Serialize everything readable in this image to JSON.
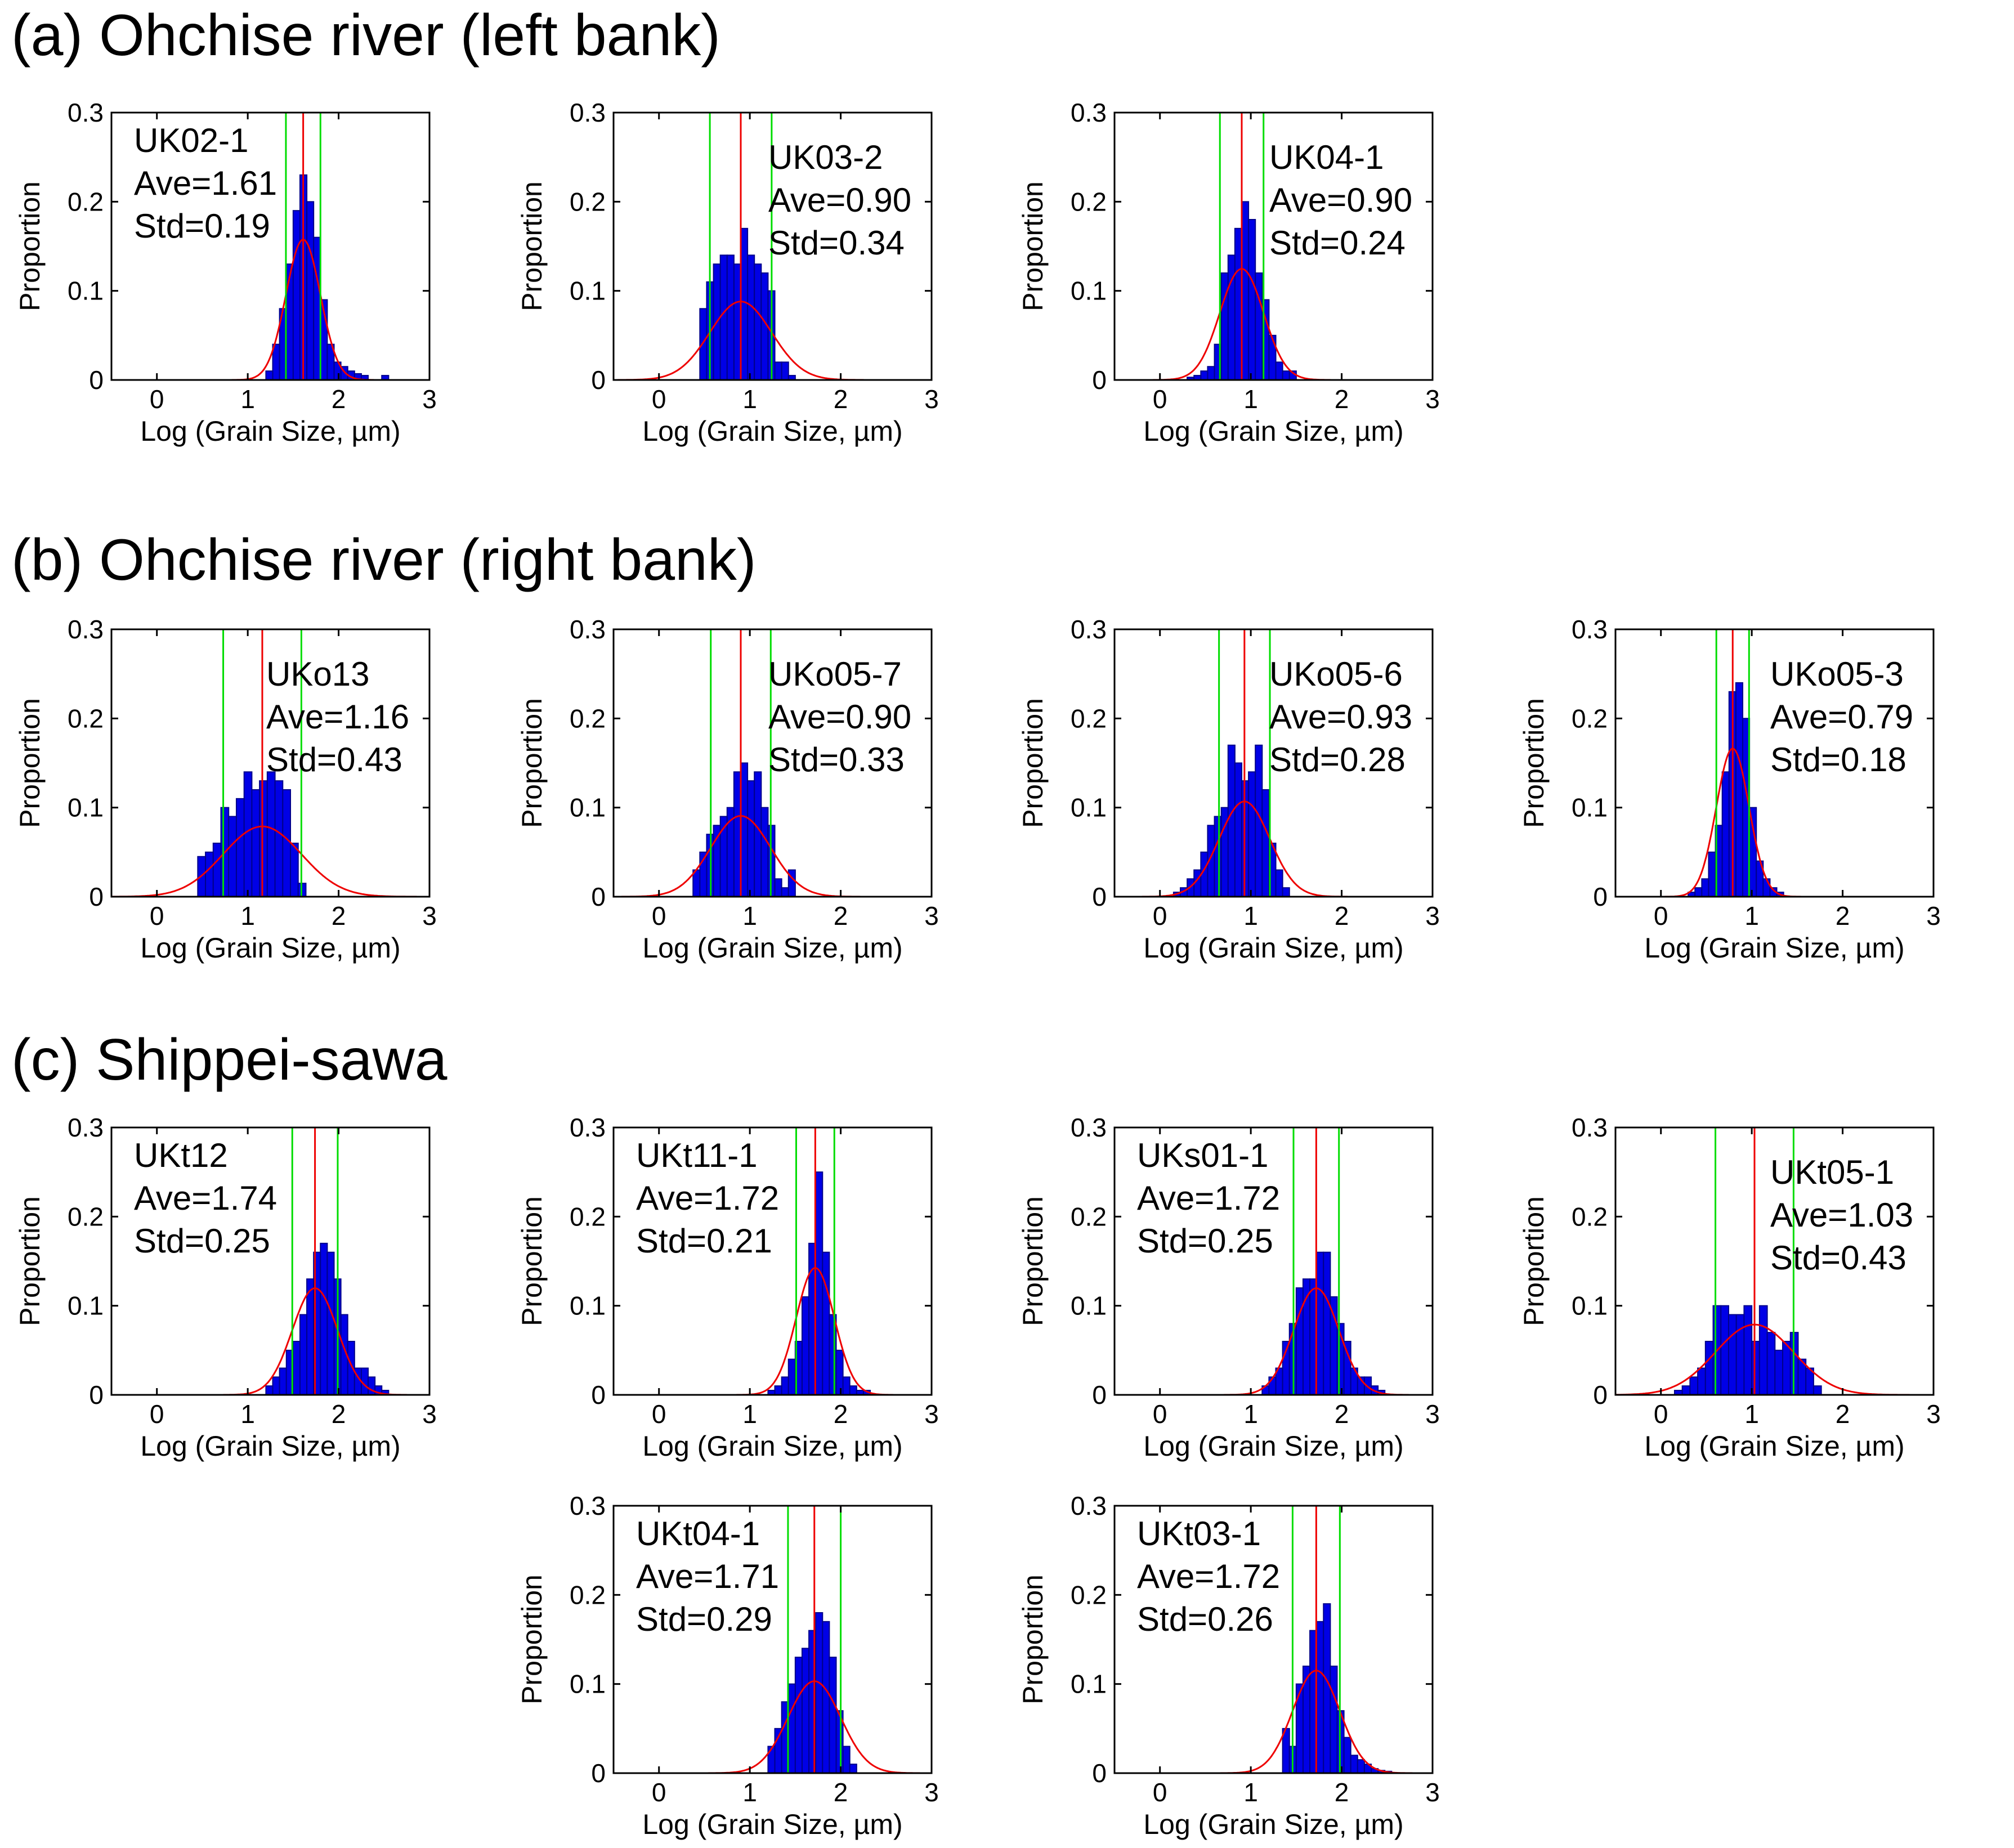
{
  "sections": [
    {
      "id": "a",
      "title": "(a) Ohchise river (left bank)"
    },
    {
      "id": "b",
      "title": "(b) Ohchise river (right bank)"
    },
    {
      "id": "c",
      "title": "(c) Shippei-sawa"
    }
  ],
  "axes": {
    "xlabel": "Log (Grain Size, µm)",
    "ylabel": "Proportion",
    "xlim": [
      -0.5,
      3
    ],
    "ylim": [
      0,
      0.3
    ],
    "xticks": [
      0,
      1,
      2,
      3
    ],
    "xtick_labels": [
      "0",
      "1",
      "2",
      "3"
    ],
    "yticks": [
      0,
      0.1,
      0.2,
      0.3
    ],
    "ytick_labels": [
      "0",
      "0.1",
      "0.2",
      "0.3"
    ]
  },
  "colors": {
    "bars": "#0000e6",
    "bar_edge": "#00008b",
    "mean_line": "#ee0000",
    "std_lines": "#00dd00",
    "fit_curve": "#ee0000"
  },
  "chart_data": [
    {
      "type": "bar",
      "section": "a",
      "sample": "UK02-1",
      "ave_label": "Ave=1.61",
      "std_label": "Std=0.19",
      "ave": 1.61,
      "std": 0.19,
      "bin_width": 0.075,
      "anno_pos": "top-left",
      "bins": [
        1.2,
        1.275,
        1.35,
        1.425,
        1.5,
        1.575,
        1.65,
        1.725,
        1.8,
        1.875,
        1.95,
        2.025,
        2.1,
        2.175,
        2.25,
        2.325,
        2.4,
        2.475
      ],
      "values": [
        0.01,
        0.04,
        0.08,
        0.13,
        0.19,
        0.23,
        0.2,
        0.16,
        0.09,
        0.04,
        0.02,
        0.015,
        0.01,
        0.007,
        0.005,
        0,
        0,
        0.005
      ]
    },
    {
      "type": "bar",
      "section": "a",
      "sample": "UK03-2",
      "ave_label": "Ave=0.90",
      "std_label": "Std=0.34",
      "ave": 0.9,
      "std": 0.34,
      "bin_width": 0.075,
      "anno_pos": "top-right",
      "bins": [
        0.45,
        0.525,
        0.6,
        0.675,
        0.75,
        0.825,
        0.9,
        0.975,
        1.05,
        1.125,
        1.2,
        1.275,
        1.35,
        1.425
      ],
      "values": [
        0.08,
        0.11,
        0.13,
        0.14,
        0.14,
        0.13,
        0.17,
        0.14,
        0.13,
        0.12,
        0.1,
        0.02,
        0.02,
        0.005
      ]
    },
    {
      "type": "bar",
      "section": "a",
      "sample": "UK04-1",
      "ave_label": "Ave=0.90",
      "std_label": "Std=0.24",
      "ave": 0.9,
      "std": 0.24,
      "bin_width": 0.075,
      "anno_pos": "top-right",
      "bins": [
        0.3,
        0.375,
        0.45,
        0.525,
        0.6,
        0.675,
        0.75,
        0.825,
        0.9,
        0.975,
        1.05,
        1.125,
        1.2,
        1.275,
        1.35,
        1.425
      ],
      "values": [
        0.003,
        0.005,
        0.01,
        0.015,
        0.04,
        0.12,
        0.14,
        0.17,
        0.2,
        0.18,
        0.12,
        0.09,
        0.05,
        0.02,
        0.01,
        0.01
      ]
    },
    {
      "type": "bar",
      "section": "b",
      "sample": "UKo13",
      "ave_label": "Ave=1.16",
      "std_label": "Std=0.43",
      "ave": 1.16,
      "std": 0.43,
      "bin_width": 0.085,
      "anno_pos": "top-right",
      "bins": [
        0.45,
        0.535,
        0.62,
        0.705,
        0.79,
        0.875,
        0.96,
        1.045,
        1.13,
        1.215,
        1.3,
        1.385,
        1.47,
        1.555
      ],
      "values": [
        0.045,
        0.05,
        0.06,
        0.1,
        0.09,
        0.11,
        0.14,
        0.12,
        0.13,
        0.14,
        0.13,
        0.12,
        0.06,
        0.015
      ]
    },
    {
      "type": "bar",
      "section": "b",
      "sample": "UKo05-7",
      "ave_label": "Ave=0.90",
      "std_label": "Std=0.33",
      "ave": 0.9,
      "std": 0.33,
      "bin_width": 0.075,
      "anno_pos": "top-right",
      "bins": [
        0.375,
        0.45,
        0.525,
        0.6,
        0.675,
        0.75,
        0.825,
        0.9,
        0.975,
        1.05,
        1.125,
        1.2,
        1.275,
        1.35,
        1.425
      ],
      "values": [
        0.03,
        0.05,
        0.07,
        0.08,
        0.09,
        0.1,
        0.14,
        0.15,
        0.13,
        0.14,
        0.1,
        0.08,
        0.02,
        0.01,
        0.03
      ]
    },
    {
      "type": "bar",
      "section": "b",
      "sample": "UKo05-6",
      "ave_label": "Ave=0.93",
      "std_label": "Std=0.28",
      "ave": 0.93,
      "std": 0.28,
      "bin_width": 0.075,
      "anno_pos": "top-right",
      "bins": [
        0.15,
        0.225,
        0.3,
        0.375,
        0.45,
        0.525,
        0.6,
        0.675,
        0.75,
        0.825,
        0.9,
        0.975,
        1.05,
        1.125,
        1.2,
        1.275,
        1.35
      ],
      "values": [
        0.005,
        0.01,
        0.02,
        0.03,
        0.05,
        0.08,
        0.09,
        0.1,
        0.17,
        0.15,
        0.13,
        0.14,
        0.17,
        0.12,
        0.06,
        0.03,
        0.01
      ]
    },
    {
      "type": "bar",
      "section": "b",
      "sample": "UKo05-3",
      "ave_label": "Ave=0.79",
      "std_label": "Std=0.18",
      "ave": 0.79,
      "std": 0.18,
      "bin_width": 0.075,
      "anno_pos": "top-right",
      "bins": [
        0.3,
        0.375,
        0.45,
        0.525,
        0.6,
        0.675,
        0.75,
        0.825,
        0.9,
        0.975,
        1.05,
        1.125,
        1.2,
        1.275
      ],
      "values": [
        0.005,
        0.01,
        0.02,
        0.05,
        0.08,
        0.14,
        0.23,
        0.24,
        0.2,
        0.1,
        0.04,
        0.02,
        0.01,
        0.005
      ]
    },
    {
      "type": "bar",
      "section": "c",
      "sample": "UKt12",
      "ave_label": "Ave=1.74",
      "std_label": "Std=0.25",
      "ave": 1.74,
      "std": 0.25,
      "bin_width": 0.075,
      "anno_pos": "top-left",
      "bins": [
        1.2,
        1.275,
        1.35,
        1.425,
        1.5,
        1.575,
        1.65,
        1.725,
        1.8,
        1.875,
        1.95,
        2.025,
        2.1,
        2.175,
        2.25,
        2.325,
        2.4,
        2.475
      ],
      "values": [
        0.01,
        0.02,
        0.03,
        0.05,
        0.06,
        0.09,
        0.13,
        0.16,
        0.17,
        0.16,
        0.13,
        0.09,
        0.06,
        0.03,
        0.03,
        0.02,
        0.01,
        0.005
      ]
    },
    {
      "type": "bar",
      "section": "c",
      "sample": "UKt11-1",
      "ave_label": "Ave=1.72",
      "std_label": "Std=0.21",
      "ave": 1.72,
      "std": 0.21,
      "bin_width": 0.075,
      "anno_pos": "top-left",
      "bins": [
        1.2,
        1.275,
        1.35,
        1.425,
        1.5,
        1.575,
        1.65,
        1.725,
        1.8,
        1.875,
        1.95,
        2.025,
        2.1,
        2.175,
        2.25
      ],
      "values": [
        0.005,
        0.01,
        0.02,
        0.04,
        0.06,
        0.11,
        0.17,
        0.25,
        0.16,
        0.09,
        0.05,
        0.02,
        0.01,
        0.005,
        0.005
      ]
    },
    {
      "type": "bar",
      "section": "c",
      "sample": "UKs01-1",
      "ave_label": "Ave=1.72",
      "std_label": "Std=0.25",
      "ave": 1.72,
      "std": 0.25,
      "bin_width": 0.075,
      "anno_pos": "top-left",
      "bins": [
        1.125,
        1.2,
        1.275,
        1.35,
        1.425,
        1.5,
        1.575,
        1.65,
        1.725,
        1.8,
        1.875,
        1.95,
        2.025,
        2.1,
        2.175,
        2.25,
        2.325,
        2.4
      ],
      "values": [
        0.01,
        0.02,
        0.03,
        0.06,
        0.08,
        0.12,
        0.13,
        0.13,
        0.16,
        0.16,
        0.11,
        0.08,
        0.06,
        0.03,
        0.02,
        0.02,
        0.01,
        0.005
      ]
    },
    {
      "type": "bar",
      "section": "c",
      "sample": "UKt05-1",
      "ave_label": "Ave=1.03",
      "std_label": "Std=0.43",
      "ave": 1.03,
      "std": 0.43,
      "bin_width": 0.085,
      "anno_pos": "top-right",
      "bins": [
        0.15,
        0.235,
        0.32,
        0.405,
        0.49,
        0.575,
        0.66,
        0.745,
        0.83,
        0.915,
        1.0,
        1.085,
        1.17,
        1.255,
        1.34,
        1.425,
        1.51,
        1.595,
        1.68
      ],
      "values": [
        0.005,
        0.01,
        0.02,
        0.03,
        0.06,
        0.1,
        0.1,
        0.09,
        0.09,
        0.1,
        0.06,
        0.1,
        0.07,
        0.05,
        0.06,
        0.07,
        0.04,
        0.03,
        0.01
      ]
    },
    {
      "type": "bar",
      "section": "c",
      "sample": "UKt04-1",
      "ave_label": "Ave=1.71",
      "std_label": "Std=0.29",
      "ave": 1.71,
      "std": 0.29,
      "bin_width": 0.075,
      "anno_pos": "top-left",
      "bins": [
        1.2,
        1.275,
        1.35,
        1.425,
        1.5,
        1.575,
        1.65,
        1.725,
        1.8,
        1.875,
        1.95,
        2.025,
        2.1
      ],
      "values": [
        0.03,
        0.05,
        0.08,
        0.1,
        0.13,
        0.14,
        0.16,
        0.18,
        0.17,
        0.13,
        0.07,
        0.03,
        0.01
      ]
    },
    {
      "type": "bar",
      "section": "c",
      "sample": "UKt03-1",
      "ave_label": "Ave=1.72",
      "std_label": "Std=0.26",
      "ave": 1.72,
      "std": 0.26,
      "bin_width": 0.075,
      "anno_pos": "top-left",
      "bins": [
        1.35,
        1.425,
        1.5,
        1.575,
        1.65,
        1.725,
        1.8,
        1.875,
        1.95,
        2.025,
        2.1,
        2.175,
        2.25,
        2.325,
        2.4,
        2.475
      ],
      "values": [
        0.05,
        0.03,
        0.1,
        0.12,
        0.16,
        0.17,
        0.19,
        0.12,
        0.07,
        0.04,
        0.02,
        0.015,
        0.01,
        0.005,
        0.003,
        0.002
      ]
    }
  ]
}
